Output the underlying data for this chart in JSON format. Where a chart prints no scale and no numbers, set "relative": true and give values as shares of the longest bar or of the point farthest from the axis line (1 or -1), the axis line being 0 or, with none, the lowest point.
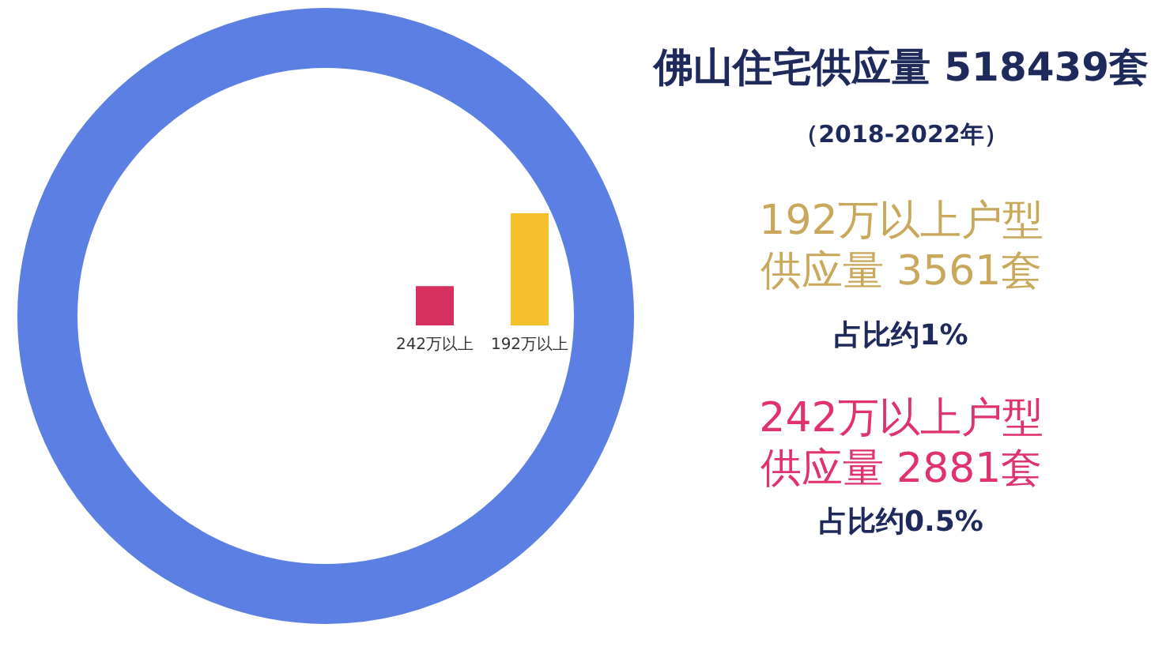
{
  "chart_data": {
    "type": "bar",
    "title": "佛山住宅供应量 518439套",
    "subtitle": "（2018-2022年）",
    "categories": [
      "242万以上",
      "192万以上"
    ],
    "values": [
      0.35,
      1
    ],
    "colors": [
      "#d6305f",
      "#f5c02c"
    ],
    "relative": true,
    "annotations": [
      "192万以上户型",
      "供应量 3561套",
      "占比约1%",
      "242万以上户型",
      "供应量 2881套",
      "占比约0.5%"
    ]
  }
}
